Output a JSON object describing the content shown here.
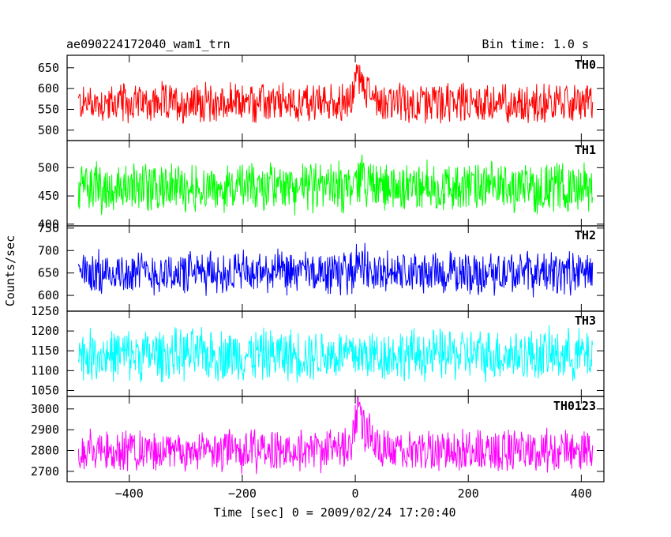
{
  "chart_data": {
    "type": "line",
    "title": "ae090224172040_wam1_trn",
    "subtitle": "Bin time: 1.0 s",
    "xlabel": "Time [sec] 0 = 2009/02/24 17:20:40",
    "ylabel": "Counts/sec",
    "xlim": [
      -510,
      440
    ],
    "xticks": [
      -400,
      -200,
      0,
      200,
      400
    ],
    "xtick_labels": [
      "−400",
      "−200",
      "0",
      "200",
      "400"
    ],
    "grid": false,
    "panels": [
      {
        "name": "TH0",
        "color": "#ff0000",
        "ylim": [
          475,
          680
        ],
        "yticks": [
          500,
          550,
          600,
          650
        ],
        "series": {
          "x_start": -490,
          "x_end": 420,
          "step": 1,
          "baseline": 565,
          "noise_half_range": 55,
          "events": [
            {
              "x": 5,
              "peak": 630,
              "width": 10
            },
            {
              "x": 20,
              "peak": 600,
              "width": 18
            }
          ]
        }
      },
      {
        "name": "TH1",
        "color": "#00ff00",
        "ylim": [
          397,
          548
        ],
        "yticks": [
          400,
          450,
          500
        ],
        "series": {
          "x_start": -490,
          "x_end": 420,
          "step": 1,
          "baseline": 465,
          "noise_half_range": 50,
          "events": [
            {
              "x": 10,
              "peak": 490,
              "width": 15
            }
          ]
        }
      },
      {
        "name": "TH2",
        "color": "#0000ff",
        "ylim": [
          565,
          755
        ],
        "yticks": [
          600,
          650,
          700,
          750
        ],
        "series": {
          "x_start": -490,
          "x_end": 420,
          "step": 1,
          "baseline": 650,
          "noise_half_range": 55,
          "events": [
            {
              "x": 8,
              "peak": 680,
              "width": 12
            }
          ]
        }
      },
      {
        "name": "TH3",
        "color": "#00ffff",
        "ylim": [
          1035,
          1250
        ],
        "yticks": [
          1050,
          1100,
          1150,
          1200,
          1250
        ],
        "series": {
          "x_start": -490,
          "x_end": 420,
          "step": 1,
          "baseline": 1140,
          "noise_half_range": 75,
          "events": []
        }
      },
      {
        "name": "TH0123",
        "color": "#ff00ff",
        "ylim": [
          2650,
          3060
        ],
        "yticks": [
          2700,
          2800,
          2900,
          3000
        ],
        "series": {
          "x_start": -490,
          "x_end": 420,
          "step": 1,
          "baseline": 2800,
          "noise_half_range": 115,
          "events": [
            {
              "x": 5,
              "peak": 3000,
              "width": 10
            },
            {
              "x": 20,
              "peak": 2880,
              "width": 18
            }
          ]
        }
      }
    ]
  }
}
